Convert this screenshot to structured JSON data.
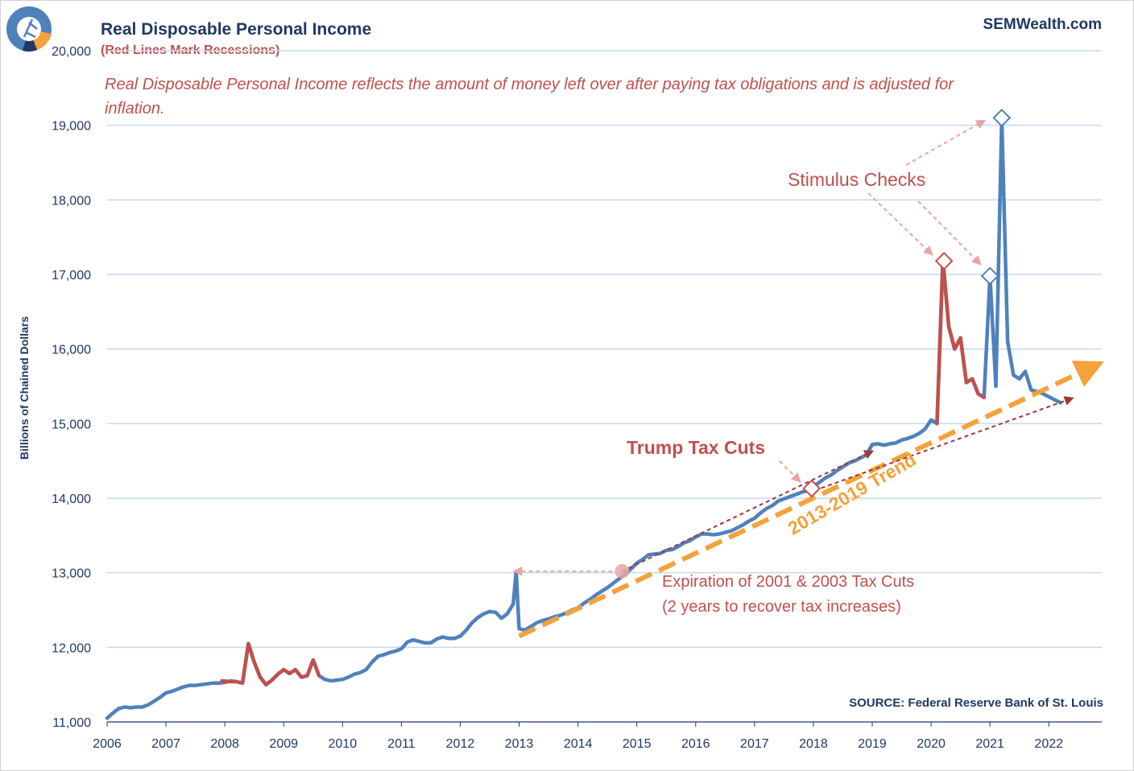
{
  "header": {
    "title": "Real Disposable Personal Income",
    "subtitle": "(Red Lines Mark Recessions)",
    "brand": "SEMWealth.com",
    "description": "Real Disposable Personal Income reflects the amount of money left over after paying tax obligations and is adjusted for inflation.",
    "source": "SOURCE:  Federal Reserve Bank of St. Louis"
  },
  "annotations": {
    "stimulus": "Stimulus Checks",
    "trump": "Trump Tax Cuts",
    "expiration_line1": "Expiration of 2001 & 2003 Tax Cuts",
    "expiration_line2": "(2 years to recover tax increases)",
    "trend": "2013-2019 Trend"
  },
  "colors": {
    "main_line": "#4f81bd",
    "recession_line": "#c0504d",
    "trend_line": "#f4a23a",
    "arrow_dark": "#a0383a",
    "arrow_light": "#e8a5a4",
    "grid": "#c5d9f1",
    "text": "#1f3864"
  },
  "chart_data": {
    "type": "line",
    "title": "Real Disposable Personal Income",
    "ylabel": "Billions of Chained Dollars",
    "xlim": [
      2006,
      2022.9
    ],
    "ylim": [
      11000,
      20000
    ],
    "x_ticks": [
      "2006",
      "2007",
      "2008",
      "2009",
      "2010",
      "2011",
      "2012",
      "2013",
      "2014",
      "2015",
      "2016",
      "2017",
      "2018",
      "2019",
      "2020",
      "2021",
      "2022"
    ],
    "y_ticks": [
      "11,000",
      "12,000",
      "13,000",
      "14,000",
      "15,000",
      "16,000",
      "17,000",
      "18,000",
      "19,000",
      "20,000"
    ],
    "grid": "horizontal",
    "series": [
      {
        "values": [
          [
            2006.0,
            11050
          ],
          [
            2006.1,
            11120
          ],
          [
            2006.2,
            11180
          ],
          [
            2006.3,
            11200
          ],
          [
            2006.4,
            11190
          ],
          [
            2006.5,
            11200
          ],
          [
            2006.6,
            11200
          ],
          [
            2006.7,
            11230
          ],
          [
            2006.8,
            11280
          ],
          [
            2006.9,
            11330
          ],
          [
            2007.0,
            11390
          ],
          [
            2007.1,
            11410
          ],
          [
            2007.2,
            11440
          ],
          [
            2007.3,
            11470
          ],
          [
            2007.4,
            11490
          ],
          [
            2007.5,
            11490
          ],
          [
            2007.6,
            11500
          ],
          [
            2007.7,
            11510
          ],
          [
            2007.8,
            11520
          ],
          [
            2007.9,
            11520
          ],
          [
            2008.0,
            11530
          ],
          [
            2008.1,
            11550
          ],
          [
            2008.2,
            11540
          ],
          [
            2008.3,
            11520
          ],
          [
            2008.4,
            12050
          ],
          [
            2008.5,
            11800
          ],
          [
            2008.6,
            11600
          ],
          [
            2008.7,
            11500
          ],
          [
            2008.8,
            11560
          ],
          [
            2008.9,
            11640
          ],
          [
            2009.0,
            11700
          ],
          [
            2009.1,
            11650
          ],
          [
            2009.2,
            11700
          ],
          [
            2009.3,
            11600
          ],
          [
            2009.4,
            11620
          ],
          [
            2009.5,
            11830
          ],
          [
            2009.6,
            11620
          ],
          [
            2009.7,
            11570
          ],
          [
            2009.8,
            11550
          ],
          [
            2009.9,
            11560
          ],
          [
            2010.0,
            11570
          ],
          [
            2010.1,
            11600
          ],
          [
            2010.2,
            11640
          ],
          [
            2010.3,
            11660
          ],
          [
            2010.4,
            11700
          ],
          [
            2010.5,
            11800
          ],
          [
            2010.6,
            11880
          ],
          [
            2010.7,
            11900
          ],
          [
            2010.8,
            11930
          ],
          [
            2010.9,
            11950
          ],
          [
            2011.0,
            11980
          ],
          [
            2011.1,
            12070
          ],
          [
            2011.2,
            12100
          ],
          [
            2011.3,
            12080
          ],
          [
            2011.4,
            12060
          ],
          [
            2011.5,
            12060
          ],
          [
            2011.6,
            12110
          ],
          [
            2011.7,
            12140
          ],
          [
            2011.8,
            12120
          ],
          [
            2011.9,
            12120
          ],
          [
            2012.0,
            12150
          ],
          [
            2012.1,
            12230
          ],
          [
            2012.2,
            12330
          ],
          [
            2012.3,
            12400
          ],
          [
            2012.4,
            12450
          ],
          [
            2012.5,
            12480
          ],
          [
            2012.6,
            12470
          ],
          [
            2012.7,
            12390
          ],
          [
            2012.8,
            12450
          ],
          [
            2012.9,
            12580
          ],
          [
            2012.95,
            13020
          ],
          [
            2013.0,
            12250
          ],
          [
            2013.1,
            12230
          ],
          [
            2013.2,
            12280
          ],
          [
            2013.3,
            12330
          ],
          [
            2013.4,
            12360
          ],
          [
            2013.5,
            12380
          ],
          [
            2013.6,
            12410
          ],
          [
            2013.7,
            12430
          ],
          [
            2013.8,
            12460
          ],
          [
            2013.9,
            12500
          ],
          [
            2014.0,
            12530
          ],
          [
            2014.1,
            12590
          ],
          [
            2014.2,
            12640
          ],
          [
            2014.3,
            12700
          ],
          [
            2014.4,
            12750
          ],
          [
            2014.5,
            12800
          ],
          [
            2014.6,
            12860
          ],
          [
            2014.7,
            12920
          ],
          [
            2014.8,
            12980
          ],
          [
            2014.9,
            13050
          ],
          [
            2015.0,
            13130
          ],
          [
            2015.1,
            13180
          ],
          [
            2015.2,
            13240
          ],
          [
            2015.3,
            13250
          ],
          [
            2015.4,
            13260
          ],
          [
            2015.5,
            13300
          ],
          [
            2015.6,
            13310
          ],
          [
            2015.7,
            13350
          ],
          [
            2015.8,
            13400
          ],
          [
            2015.9,
            13430
          ],
          [
            2016.0,
            13480
          ],
          [
            2016.1,
            13520
          ],
          [
            2016.2,
            13520
          ],
          [
            2016.3,
            13510
          ],
          [
            2016.4,
            13520
          ],
          [
            2016.5,
            13540
          ],
          [
            2016.6,
            13560
          ],
          [
            2016.7,
            13600
          ],
          [
            2016.8,
            13640
          ],
          [
            2016.9,
            13690
          ],
          [
            2017.0,
            13730
          ],
          [
            2017.1,
            13800
          ],
          [
            2017.2,
            13860
          ],
          [
            2017.3,
            13900
          ],
          [
            2017.4,
            13960
          ],
          [
            2017.5,
            13990
          ],
          [
            2017.6,
            14020
          ],
          [
            2017.7,
            14050
          ],
          [
            2017.8,
            14080
          ],
          [
            2017.9,
            14100
          ],
          [
            2018.0,
            14160
          ],
          [
            2018.1,
            14210
          ],
          [
            2018.2,
            14270
          ],
          [
            2018.3,
            14310
          ],
          [
            2018.4,
            14370
          ],
          [
            2018.5,
            14420
          ],
          [
            2018.6,
            14470
          ],
          [
            2018.7,
            14500
          ],
          [
            2018.8,
            14540
          ],
          [
            2018.9,
            14580
          ],
          [
            2019.0,
            14720
          ],
          [
            2019.1,
            14730
          ],
          [
            2019.2,
            14710
          ],
          [
            2019.3,
            14730
          ],
          [
            2019.4,
            14740
          ],
          [
            2019.5,
            14780
          ],
          [
            2019.6,
            14800
          ],
          [
            2019.7,
            14830
          ],
          [
            2019.8,
            14870
          ],
          [
            2019.9,
            14930
          ],
          [
            2020.0,
            15050
          ],
          [
            2020.1,
            15000
          ]
        ]
      },
      {
        "values": [
          [
            2020.1,
            15000
          ],
          [
            2020.2,
            17200
          ],
          [
            2020.3,
            16300
          ],
          [
            2020.4,
            16000
          ],
          [
            2020.5,
            16150
          ],
          [
            2020.6,
            15550
          ],
          [
            2020.7,
            15600
          ],
          [
            2020.8,
            15400
          ],
          [
            2020.9,
            15350
          ],
          [
            2021.0,
            16980
          ],
          [
            2021.1,
            15500
          ],
          [
            2021.2,
            19100
          ],
          [
            2021.3,
            16100
          ],
          [
            2021.4,
            15650
          ],
          [
            2021.5,
            15600
          ],
          [
            2021.6,
            15700
          ],
          [
            2021.7,
            15450
          ],
          [
            2021.8,
            15430
          ],
          [
            2021.9,
            15400
          ],
          [
            2022.0,
            15360
          ],
          [
            2022.1,
            15320
          ],
          [
            2022.2,
            15280
          ]
        ]
      },
      {
        "values": [
          [
            2007.95,
            11550
          ],
          [
            2008.1,
            11540
          ],
          [
            2008.2,
            11540
          ],
          [
            2008.3,
            11520
          ],
          [
            2008.4,
            12050
          ],
          [
            2008.5,
            11800
          ],
          [
            2008.6,
            11600
          ],
          [
            2008.7,
            11500
          ],
          [
            2008.8,
            11560
          ],
          [
            2008.9,
            11640
          ],
          [
            2009.0,
            11700
          ],
          [
            2009.1,
            11650
          ],
          [
            2009.2,
            11700
          ],
          [
            2009.3,
            11600
          ],
          [
            2009.4,
            11620
          ],
          [
            2009.5,
            11830
          ],
          [
            2009.6,
            11620
          ]
        ]
      },
      {
        "values": [
          [
            2020.1,
            15000
          ],
          [
            2020.2,
            17200
          ],
          [
            2020.3,
            16300
          ],
          [
            2020.4,
            16000
          ],
          [
            2020.5,
            16150
          ],
          [
            2020.6,
            15550
          ],
          [
            2020.7,
            15600
          ],
          [
            2020.8,
            15400
          ],
          [
            2020.9,
            15350
          ]
        ]
      }
    ],
    "markers": [
      {
        "x": 2020.22,
        "y": 17180,
        "color": "#c0504d"
      },
      {
        "x": 2021.0,
        "y": 16980,
        "color": "#4f81bd"
      },
      {
        "x": 2021.2,
        "y": 19100,
        "color": "#4f81bd"
      },
      {
        "x": 2017.97,
        "y": 14130,
        "color": "#c0504d"
      }
    ],
    "trend": {
      "x": [
        2013.0,
        2022.85
      ],
      "y": [
        12150,
        15800
      ]
    },
    "annotation_points": {
      "expiration_circle": {
        "x": 2014.75,
        "y": 13020
      }
    }
  }
}
